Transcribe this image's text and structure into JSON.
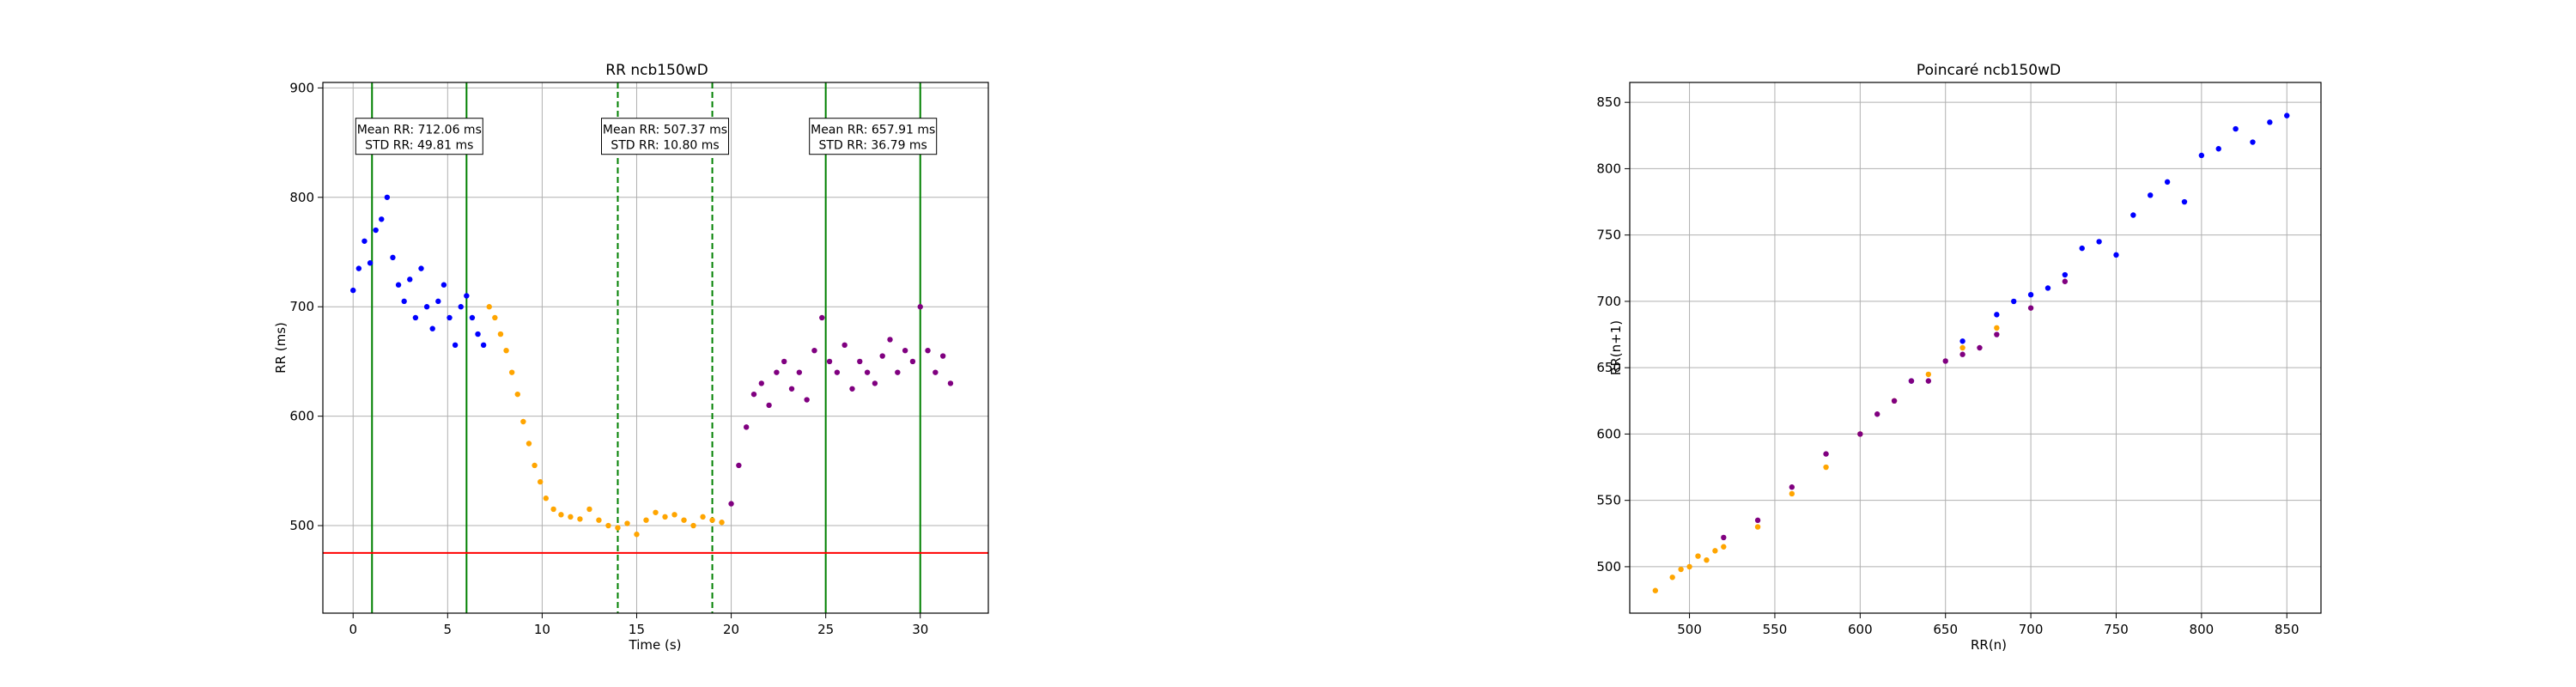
{
  "chart_data": [
    {
      "type": "scatter",
      "title": "RR ncb150wD",
      "xlabel": "Time (s)",
      "ylabel": "RR (ms)",
      "xlim": [
        -1.6,
        33.6
      ],
      "ylim": [
        420,
        905
      ],
      "xticks": [
        0,
        5,
        10,
        15,
        20,
        25,
        30
      ],
      "yticks": [
        500,
        600,
        700,
        800,
        900
      ],
      "grid": true,
      "series": [
        {
          "color": "#0000ff",
          "x": [
            0.0,
            0.3,
            0.6,
            0.9,
            1.2,
            1.5,
            1.8,
            2.1,
            2.4,
            2.7,
            3.0,
            3.3,
            3.6,
            3.9,
            4.2,
            4.5,
            4.8,
            5.1,
            5.4,
            5.7,
            6.0,
            6.3,
            6.6,
            6.9
          ],
          "y": [
            715,
            735,
            760,
            740,
            770,
            780,
            800,
            745,
            720,
            705,
            725,
            690,
            735,
            700,
            680,
            705,
            720,
            690,
            665,
            700,
            710,
            690,
            675,
            665
          ]
        },
        {
          "color": "#ffa500",
          "x": [
            7.2,
            7.5,
            7.8,
            8.1,
            8.4,
            8.7,
            9.0,
            9.3,
            9.6,
            9.9,
            10.2,
            10.6,
            11.0,
            11.5,
            12.0,
            12.5,
            13.0,
            13.5,
            14.0,
            14.5,
            15.0,
            15.5,
            16.0,
            16.5,
            17.0,
            17.5,
            18.0,
            18.5,
            19.0,
            19.5
          ],
          "y": [
            700,
            690,
            675,
            660,
            640,
            620,
            595,
            575,
            555,
            540,
            525,
            515,
            510,
            508,
            506,
            515,
            505,
            500,
            498,
            502,
            492,
            505,
            512,
            508,
            510,
            505,
            500,
            508,
            505,
            503
          ]
        },
        {
          "color": "#800080",
          "x": [
            20.0,
            20.4,
            20.8,
            21.2,
            21.6,
            22.0,
            22.4,
            22.8,
            23.2,
            23.6,
            24.0,
            24.4,
            24.8,
            25.2,
            25.6,
            26.0,
            26.4,
            26.8,
            27.2,
            27.6,
            28.0,
            28.4,
            28.8,
            29.2,
            29.6,
            30.0,
            30.4,
            30.8,
            31.2,
            31.6
          ],
          "y": [
            520,
            555,
            590,
            620,
            630,
            610,
            640,
            650,
            625,
            640,
            615,
            660,
            690,
            650,
            640,
            665,
            625,
            650,
            640,
            630,
            655,
            670,
            640,
            660,
            650,
            700,
            660,
            640,
            655,
            630
          ]
        }
      ],
      "vlines_solid": [
        1.0,
        6.0,
        25.0,
        30.0
      ],
      "vlines_dashed": [
        14.0,
        19.0
      ],
      "hline": 475,
      "annotations": [
        {
          "line1": "Mean RR: 712.06 ms",
          "line2": "STD RR: 49.81 ms",
          "x": 3.5,
          "y": 855
        },
        {
          "line1": "Mean RR: 507.37 ms",
          "line2": "STD RR: 10.80 ms",
          "x": 16.5,
          "y": 855
        },
        {
          "line1": "Mean RR: 657.91 ms",
          "line2": "STD RR: 36.79 ms",
          "x": 27.5,
          "y": 855
        }
      ]
    },
    {
      "type": "scatter",
      "title": "Poincaré ncb150wD",
      "xlabel": "RR(n)",
      "ylabel": "RR(n+1)",
      "xlim": [
        465,
        870
      ],
      "ylim": [
        465,
        865
      ],
      "xticks": [
        500,
        550,
        600,
        650,
        700,
        750,
        800,
        850
      ],
      "yticks": [
        500,
        550,
        600,
        650,
        700,
        750,
        800,
        850
      ],
      "grid": true,
      "series": [
        {
          "color": "#0000ff",
          "x": [
            630,
            660,
            680,
            700,
            720,
            740,
            760,
            780,
            800,
            820,
            840,
            850,
            690,
            710,
            730,
            750,
            770,
            790,
            810,
            830
          ],
          "y": [
            640,
            670,
            690,
            705,
            720,
            745,
            765,
            790,
            810,
            830,
            835,
            840,
            700,
            710,
            740,
            735,
            780,
            775,
            815,
            820
          ]
        },
        {
          "color": "#ffa500",
          "x": [
            480,
            490,
            500,
            510,
            520,
            540,
            560,
            580,
            600,
            620,
            640,
            660,
            680,
            495,
            505,
            515
          ],
          "y": [
            482,
            492,
            500,
            505,
            515,
            530,
            555,
            575,
            600,
            625,
            645,
            665,
            680,
            498,
            508,
            512
          ]
        },
        {
          "color": "#800080",
          "x": [
            520,
            540,
            560,
            580,
            600,
            620,
            640,
            660,
            680,
            700,
            720,
            610,
            630,
            650,
            670
          ],
          "y": [
            522,
            535,
            560,
            585,
            600,
            625,
            640,
            660,
            675,
            695,
            715,
            615,
            640,
            655,
            665
          ]
        }
      ]
    }
  ]
}
